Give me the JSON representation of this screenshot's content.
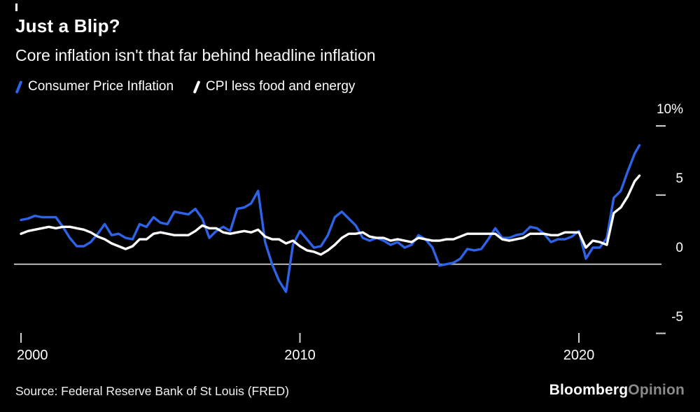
{
  "header": {
    "title": "Just a Blip?",
    "subtitle": "Core inflation isn't that far behind headline inflation"
  },
  "legend": [
    {
      "label": "Consumer Price Inflation",
      "color": "#2e63e8"
    },
    {
      "label": "CPI less food and energy",
      "color": "#ffffff"
    }
  ],
  "footer": {
    "source": "Source: Federal Reserve Bank of St Louis (FRED)",
    "brand": "Bloomberg",
    "brand_suffix": "Opinion"
  },
  "colors": {
    "background": "#000000",
    "headline_line": "#2e63e8",
    "core_line": "#ffffff",
    "axis_ticks": "#cfcfcf",
    "zero_line": "#e2e2e2"
  },
  "chart_data": {
    "type": "line",
    "title": "Just a Blip?",
    "subtitle": "Core inflation isn't that far behind headline inflation",
    "legend_position": "top-left",
    "grid": "zero-line-only",
    "xlim": [
      2000,
      2022.6
    ],
    "ylim": [
      -6.5,
      10.5
    ],
    "baseline": 0,
    "ytick_values": [
      10,
      5,
      0,
      -5
    ],
    "ytick_labels": [
      "10%",
      "5",
      "0",
      "-5"
    ],
    "xtick_values": [
      2000,
      2010,
      2020
    ],
    "xtick_labels": [
      "2000",
      "2010",
      "2020"
    ],
    "x": [
      2000,
      2000.25,
      2000.5,
      2000.75,
      2001,
      2001.25,
      2001.5,
      2001.75,
      2002,
      2002.25,
      2002.5,
      2002.75,
      2003,
      2003.25,
      2003.5,
      2003.75,
      2004,
      2004.25,
      2004.5,
      2004.75,
      2005,
      2005.25,
      2005.5,
      2005.75,
      2006,
      2006.25,
      2006.5,
      2006.75,
      2007,
      2007.25,
      2007.5,
      2007.75,
      2008,
      2008.25,
      2008.5,
      2008.75,
      2009,
      2009.25,
      2009.5,
      2009.75,
      2010,
      2010.25,
      2010.5,
      2010.75,
      2011,
      2011.25,
      2011.5,
      2011.75,
      2012,
      2012.25,
      2012.5,
      2012.75,
      2013,
      2013.25,
      2013.5,
      2013.75,
      2014,
      2014.25,
      2014.5,
      2014.75,
      2015,
      2015.25,
      2015.5,
      2015.75,
      2016,
      2016.25,
      2016.5,
      2016.75,
      2017,
      2017.25,
      2017.5,
      2017.75,
      2018,
      2018.25,
      2018.5,
      2018.75,
      2019,
      2019.25,
      2019.5,
      2019.75,
      2020,
      2020.25,
      2020.5,
      2020.75,
      2021,
      2021.25,
      2021.5,
      2021.75,
      2022,
      2022.17
    ],
    "series": [
      {
        "name": "Consumer Price Inflation",
        "color": "#2e63e8",
        "values": [
          3.2,
          3.3,
          3.5,
          3.4,
          3.4,
          3.4,
          2.7,
          1.9,
          1.3,
          1.3,
          1.6,
          2.2,
          2.9,
          2.1,
          2.2,
          1.9,
          1.8,
          2.9,
          2.7,
          3.4,
          3.0,
          2.9,
          3.8,
          3.7,
          3.6,
          4.0,
          3.3,
          1.9,
          2.4,
          2.7,
          2.4,
          4.0,
          4.1,
          4.4,
          5.3,
          1.6,
          0.0,
          -1.2,
          -2.0,
          1.4,
          2.4,
          1.8,
          1.2,
          1.3,
          2.1,
          3.4,
          3.8,
          3.3,
          2.8,
          1.9,
          1.7,
          1.9,
          1.7,
          1.4,
          1.6,
          1.2,
          1.4,
          2.1,
          1.8,
          1.2,
          -0.1,
          0.0,
          0.1,
          0.4,
          1.1,
          1.0,
          1.1,
          1.8,
          2.6,
          1.9,
          1.9,
          2.1,
          2.2,
          2.7,
          2.6,
          2.2,
          1.6,
          1.8,
          1.8,
          2.0,
          2.4,
          0.4,
          1.2,
          1.2,
          1.9,
          4.8,
          5.3,
          6.7,
          8.0,
          8.6
        ]
      },
      {
        "name": "CPI less food and energy",
        "color": "#ffffff",
        "values": [
          2.2,
          2.4,
          2.5,
          2.6,
          2.7,
          2.6,
          2.7,
          2.7,
          2.6,
          2.5,
          2.3,
          2.0,
          1.8,
          1.5,
          1.3,
          1.1,
          1.3,
          1.8,
          1.8,
          2.2,
          2.3,
          2.2,
          2.1,
          2.1,
          2.1,
          2.4,
          2.8,
          2.6,
          2.6,
          2.3,
          2.2,
          2.3,
          2.4,
          2.3,
          2.5,
          2.0,
          1.8,
          1.8,
          1.5,
          1.7,
          1.3,
          1.0,
          0.9,
          0.7,
          1.0,
          1.4,
          1.9,
          2.2,
          2.2,
          2.3,
          2.0,
          1.9,
          1.9,
          1.7,
          1.8,
          1.7,
          1.6,
          1.9,
          1.8,
          1.7,
          1.7,
          1.8,
          1.8,
          2.0,
          2.2,
          2.2,
          2.2,
          2.2,
          2.2,
          1.8,
          1.7,
          1.8,
          1.9,
          2.2,
          2.2,
          2.2,
          2.1,
          2.1,
          2.3,
          2.3,
          2.3,
          1.2,
          1.7,
          1.6,
          1.4,
          3.7,
          4.1,
          4.9,
          6.0,
          6.4
        ]
      }
    ]
  }
}
